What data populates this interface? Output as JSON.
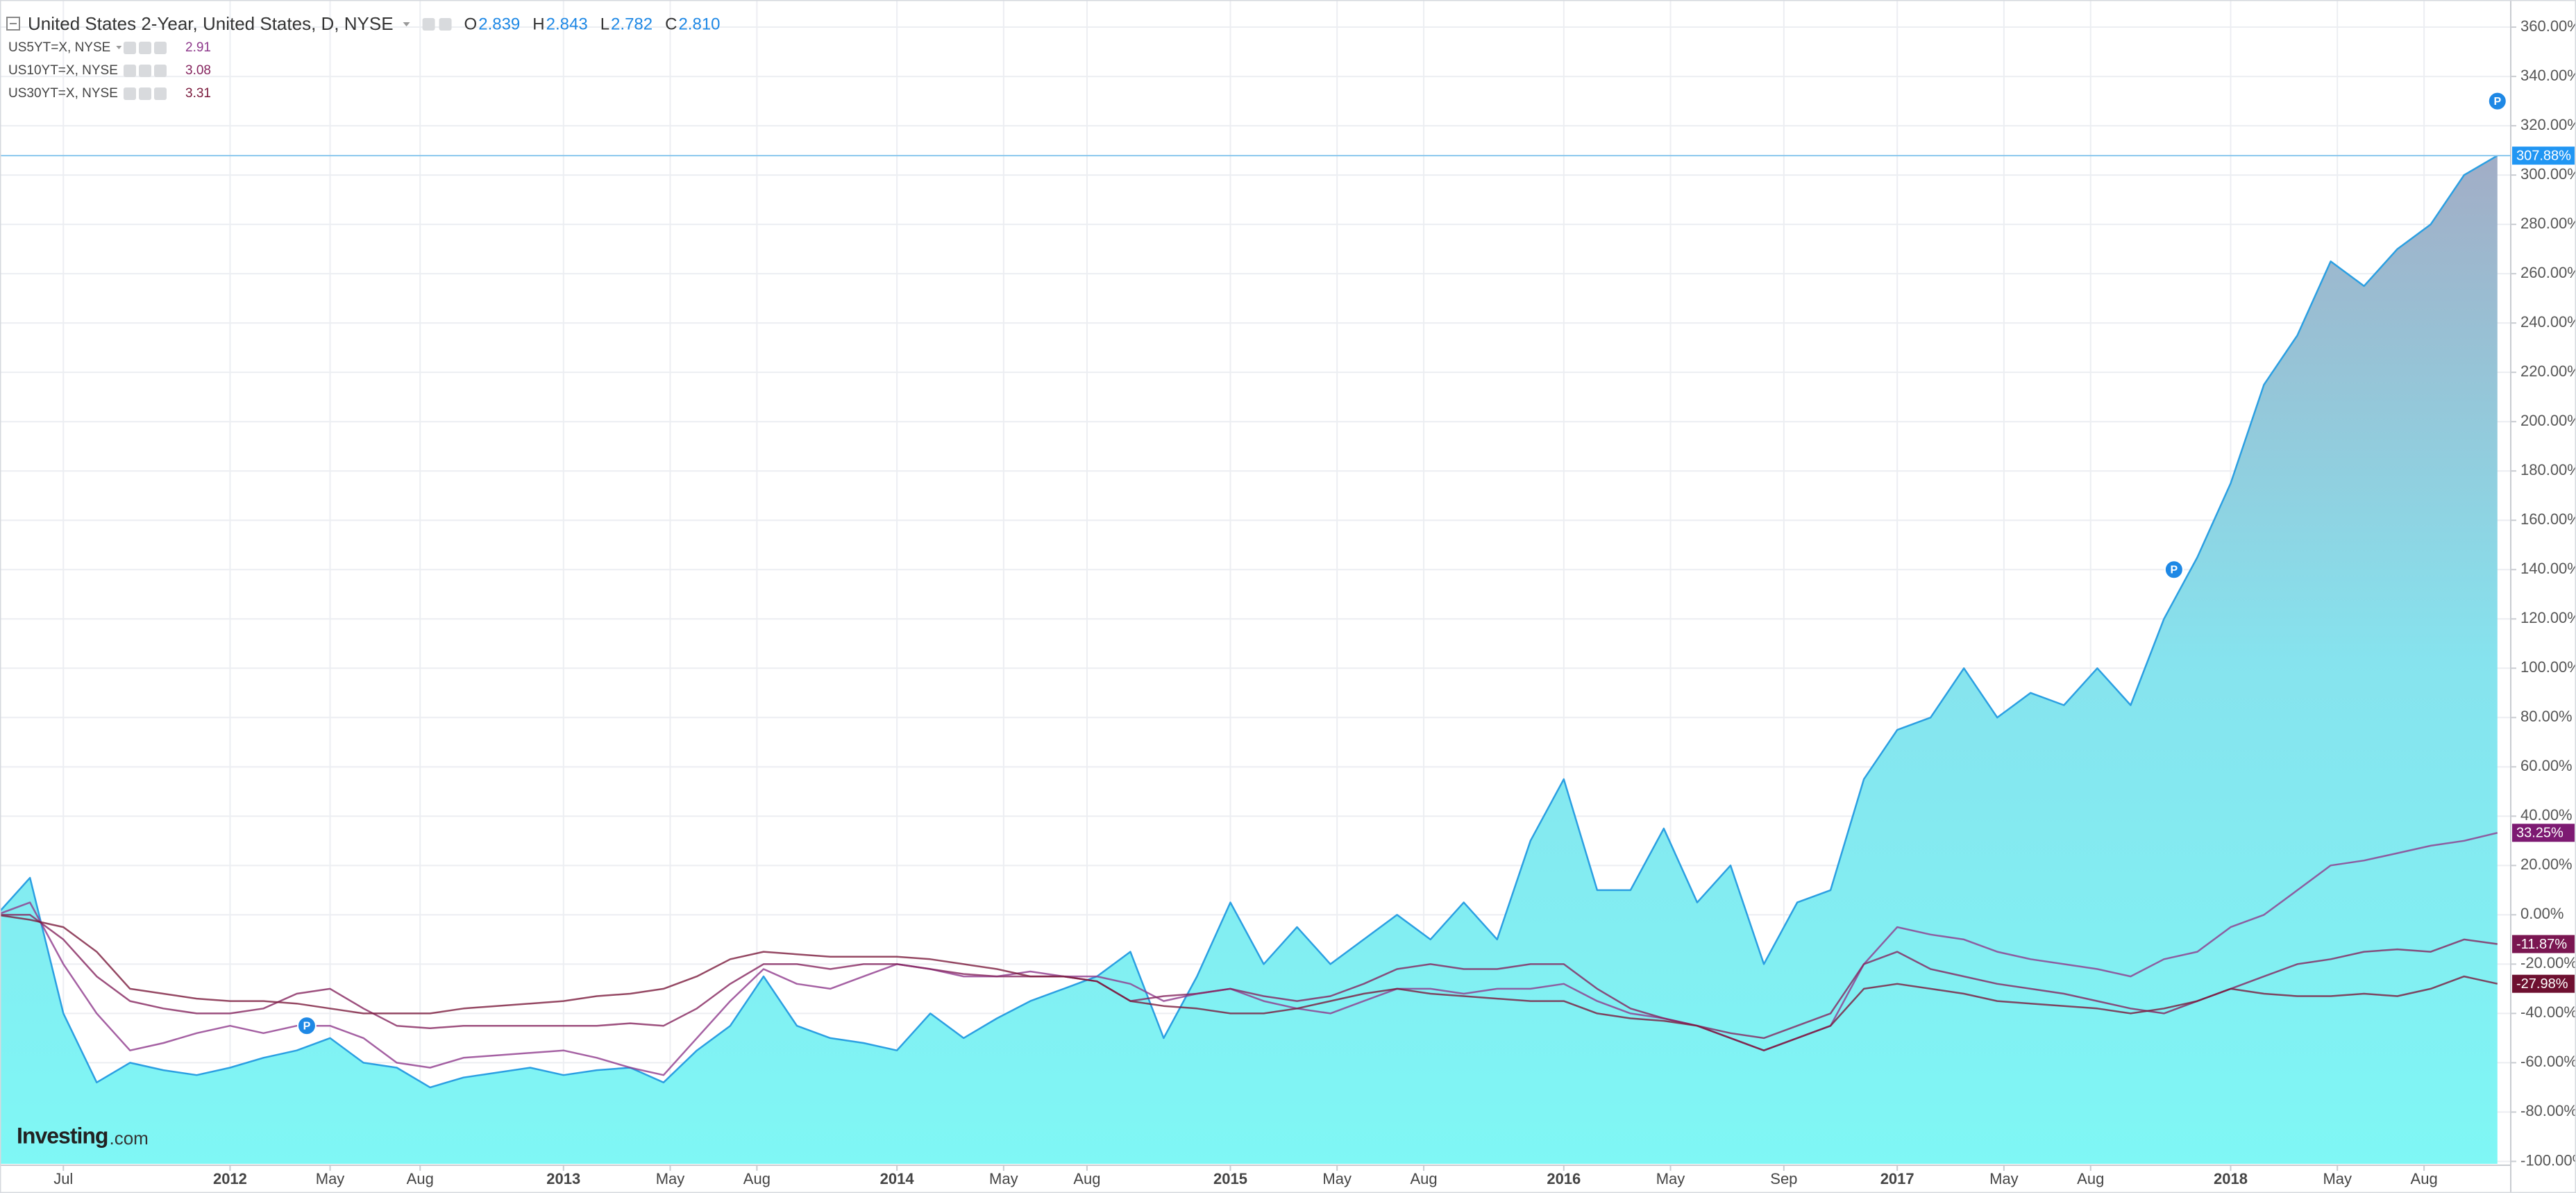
{
  "chart_data": {
    "type": "line",
    "ohlc": [
      {
        "key": "O",
        "value": 2.839
      },
      {
        "key": "H",
        "value": 2.843
      },
      {
        "key": "L",
        "value": 2.782
      },
      {
        "key": "C",
        "value": {
          "value": 2.81,
          "label": "2.810"
        }
      }
    ],
    "watermark": [
      "Investing",
      ".com"
    ],
    "xlim": [
      2011.31,
      2018.84
    ],
    "ylim": [
      -101,
      371
    ],
    "grid": true,
    "area_gradient": [
      "#a2adc6",
      "#86e3ee",
      "#7ff7f5"
    ],
    "xticks": [
      {
        "value": 2011.5,
        "label": "Jul"
      },
      2012,
      {
        "value": 2012.3,
        "label": "May"
      },
      {
        "value": 2012.57,
        "label": "Aug"
      },
      2013,
      {
        "value": 2013.32,
        "label": "May"
      },
      {
        "value": 2013.58,
        "label": "Aug"
      },
      2014,
      {
        "value": 2014.32,
        "label": "May"
      },
      {
        "value": 2014.57,
        "label": "Aug"
      },
      2015,
      {
        "value": 2015.32,
        "label": "May"
      },
      {
        "value": 2015.58,
        "label": "Aug"
      },
      2016,
      {
        "value": 2016.32,
        "label": "May"
      },
      {
        "value": 2016.66,
        "label": "Sep"
      },
      2017,
      {
        "value": 2017.32,
        "label": "May"
      },
      {
        "value": 2017.58,
        "label": "Aug"
      },
      2018,
      {
        "value": 2018.32,
        "label": "May"
      },
      {
        "value": 2018.58,
        "label": "Aug"
      }
    ],
    "yticks": [
      {
        "value": -100,
        "label": "-100.00%"
      },
      {
        "value": -80,
        "label": "-80.00%"
      },
      {
        "value": -60,
        "label": "-60.00%"
      },
      {
        "value": -40,
        "label": "-40.00%"
      },
      {
        "value": -20,
        "label": "-20.00%"
      },
      {
        "value": 0,
        "label": "0.00%"
      },
      {
        "value": 20,
        "label": "20.00%"
      },
      {
        "value": 40,
        "label": "40.00%"
      },
      {
        "value": 60,
        "label": "60.00%"
      },
      {
        "value": 80,
        "label": "80.00%"
      },
      {
        "value": 100,
        "label": "100.00%"
      },
      {
        "value": 120,
        "label": "120.00%"
      },
      {
        "value": 140,
        "label": "140.00%"
      },
      {
        "value": 160,
        "label": "160.00%"
      },
      {
        "value": 180,
        "label": "180.00%"
      },
      {
        "value": 200,
        "label": "200.00%"
      },
      {
        "value": 220,
        "label": "220.00%"
      },
      {
        "value": 240,
        "label": "240.00%"
      },
      {
        "value": 260,
        "label": "260.00%"
      },
      {
        "value": 280,
        "label": "280.00%"
      },
      {
        "value": 300,
        "label": "300.00%"
      },
      {
        "value": 320,
        "label": "320.00%"
      },
      {
        "value": 340,
        "label": "340.00%"
      },
      {
        "value": 360,
        "label": "360.00%"
      }
    ],
    "x": [
      2011.3,
      2011.4,
      2011.5,
      2011.6,
      2011.7,
      2011.8,
      2011.9,
      2012.0,
      2012.1,
      2012.2,
      2012.3,
      2012.4,
      2012.5,
      2012.6,
      2012.7,
      2012.8,
      2012.9,
      2013.0,
      2013.1,
      2013.2,
      2013.3,
      2013.4,
      2013.5,
      2013.6,
      2013.7,
      2013.8,
      2013.9,
      2014.0,
      2014.1,
      2014.2,
      2014.3,
      2014.4,
      2014.5,
      2014.6,
      2014.7,
      2014.8,
      2014.9,
      2015.0,
      2015.1,
      2015.2,
      2015.3,
      2015.4,
      2015.5,
      2015.6,
      2015.7,
      2015.8,
      2015.9,
      2016.0,
      2016.1,
      2016.2,
      2016.3,
      2016.4,
      2016.5,
      2016.6,
      2016.7,
      2016.8,
      2016.9,
      2017.0,
      2017.1,
      2017.2,
      2017.3,
      2017.4,
      2017.5,
      2017.6,
      2017.7,
      2017.8,
      2017.9,
      2018.0,
      2018.1,
      2018.2,
      2018.3,
      2018.4,
      2018.5,
      2018.6,
      2018.7,
      2018.8
    ],
    "series": [
      {
        "name": "United States 2-Year, United States, D, NYSE",
        "color": "#2b9fe2",
        "area": true,
        "last": {
          "value": 307.88,
          "label": "307.88%"
        },
        "last_color": "#2196f3",
        "values": [
          0,
          15,
          -40,
          -68,
          -60,
          -63,
          -65,
          -62,
          -58,
          -55,
          -50,
          -60,
          -62,
          -70,
          -66,
          -64,
          -62,
          -65,
          -63,
          -62,
          -68,
          -55,
          -45,
          -25,
          -45,
          -50,
          -52,
          -55,
          -40,
          -50,
          -42,
          -35,
          -30,
          -25,
          -15,
          -50,
          -25,
          5,
          -20,
          -5,
          -20,
          -10,
          0,
          -10,
          5,
          -10,
          30,
          55,
          10,
          10,
          35,
          5,
          20,
          -20,
          5,
          10,
          55,
          75,
          80,
          100,
          80,
          90,
          85,
          100,
          85,
          120,
          145,
          175,
          215,
          235,
          265,
          255,
          270,
          280,
          300,
          307.88
        ]
      },
      {
        "name": "US5YT=X, NYSE",
        "color": "#8e3a8c",
        "quote": 2.91,
        "last": {
          "value": 33.25,
          "label": "33.25%"
        },
        "last_color": "#7d1a72",
        "values": [
          0,
          5,
          -20,
          -40,
          -55,
          -52,
          -48,
          -45,
          -48,
          -45,
          -45,
          -50,
          -60,
          -62,
          -58,
          -57,
          -56,
          -55,
          -58,
          -62,
          -65,
          -50,
          -35,
          -22,
          -28,
          -30,
          -25,
          -20,
          -22,
          -25,
          -25,
          -23,
          -25,
          -25,
          -28,
          -35,
          -32,
          -30,
          -35,
          -38,
          -40,
          -35,
          -30,
          -30,
          -32,
          -30,
          -30,
          -28,
          -35,
          -40,
          -42,
          -45,
          -50,
          -55,
          -50,
          -45,
          -20,
          -5,
          -8,
          -10,
          -15,
          -18,
          -20,
          -22,
          -25,
          -18,
          -15,
          -5,
          0,
          10,
          20,
          22,
          25,
          28,
          30,
          33.25
        ]
      },
      {
        "name": "US10YT=X, NYSE",
        "color": "#85245e",
        "quote": 3.08,
        "last": {
          "value": -11.87,
          "label": "-11.87%"
        },
        "last_color": "#7a1651",
        "values": [
          0,
          0,
          -10,
          -25,
          -35,
          -38,
          -40,
          -40,
          -38,
          -32,
          -30,
          -38,
          -45,
          -46,
          -45,
          -45,
          -45,
          -45,
          -45,
          -44,
          -45,
          -38,
          -28,
          -20,
          -20,
          -22,
          -20,
          -20,
          -22,
          -24,
          -25,
          -25,
          -25,
          -27,
          -35,
          -33,
          -32,
          -30,
          -33,
          -35,
          -33,
          -28,
          -22,
          -20,
          -22,
          -22,
          -20,
          -20,
          -30,
          -38,
          -42,
          -45,
          -48,
          -50,
          -45,
          -40,
          -20,
          -15,
          -22,
          -25,
          -28,
          -30,
          -32,
          -35,
          -38,
          -40,
          -35,
          -30,
          -25,
          -20,
          -18,
          -15,
          -14,
          -15,
          -10,
          -11.87
        ]
      },
      {
        "name": "US30YT=X, NYSE",
        "color": "#7a1a3c",
        "quote": 3.31,
        "last": {
          "value": -27.98,
          "label": "-27.98%"
        },
        "last_color": "#6e1030",
        "values": [
          0,
          -2,
          -5,
          -15,
          -30,
          -32,
          -34,
          -35,
          -35,
          -36,
          -38,
          -40,
          -40,
          -40,
          -38,
          -37,
          -36,
          -35,
          -33,
          -32,
          -30,
          -25,
          -18,
          -15,
          -16,
          -17,
          -17,
          -17,
          -18,
          -20,
          -22,
          -25,
          -25,
          -27,
          -35,
          -37,
          -38,
          -40,
          -40,
          -38,
          -35,
          -32,
          -30,
          -32,
          -33,
          -34,
          -35,
          -35,
          -40,
          -42,
          -43,
          -45,
          -50,
          -55,
          -50,
          -45,
          -30,
          -28,
          -30,
          -32,
          -35,
          -36,
          -37,
          -38,
          -40,
          -38,
          -35,
          -30,
          -32,
          -33,
          -33,
          -32,
          -33,
          -30,
          -25,
          -27.98
        ]
      }
    ],
    "markers": [
      {
        "x": 2012.23,
        "y": -45,
        "text": "P"
      },
      {
        "x": 2017.83,
        "y": 140,
        "text": "P"
      },
      {
        "x": 2018.8,
        "y": 330,
        "text": "P"
      }
    ]
  }
}
